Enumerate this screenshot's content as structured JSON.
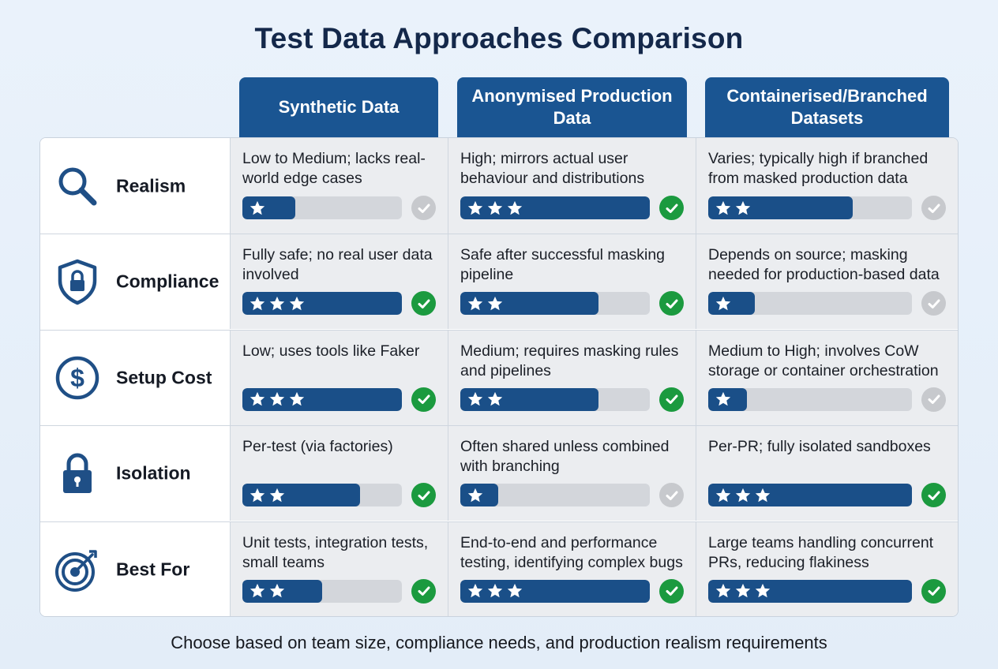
{
  "title": "Test Data Approaches Comparison",
  "columns": [
    {
      "label": "Synthetic Data"
    },
    {
      "label": "Anonymised Production Data"
    },
    {
      "label": "Containerised/Branched Datasets"
    }
  ],
  "rows": [
    {
      "label": "Realism",
      "icon": "magnifier-icon",
      "cells": [
        {
          "text": "Low to Medium; lacks real-world edge cases",
          "rating": 1,
          "level": 0.33,
          "check": false
        },
        {
          "text": "High; mirrors actual user behaviour and distributions",
          "rating": 3,
          "level": 1.0,
          "check": true
        },
        {
          "text": "Varies; typically high if branched from masked production data",
          "rating": 2,
          "level": 0.71,
          "check": false
        }
      ]
    },
    {
      "label": "Compliance",
      "icon": "shield-lock-icon",
      "cells": [
        {
          "text": "Fully safe; no real user data involved",
          "rating": 3,
          "level": 1.0,
          "check": true
        },
        {
          "text": "Safe after successful masking pipeline",
          "rating": 2,
          "level": 0.73,
          "check": true
        },
        {
          "text": "Depends on source; masking needed for production-based data",
          "rating": 1,
          "level": 0.23,
          "check": false
        }
      ]
    },
    {
      "label": "Setup Cost",
      "icon": "dollar-icon",
      "cells": [
        {
          "text": "Low; uses tools like Faker",
          "rating": 3,
          "level": 1.0,
          "check": true
        },
        {
          "text": "Medium; requires masking rules and pipelines",
          "rating": 2,
          "level": 0.73,
          "check": true
        },
        {
          "text": "Medium to High; involves CoW storage or container orchestration",
          "rating": 1,
          "level": 0.19,
          "check": false
        }
      ]
    },
    {
      "label": "Isolation",
      "icon": "padlock-icon",
      "cells": [
        {
          "text": "Per-test (via factories)",
          "rating": 2,
          "level": 0.74,
          "check": true
        },
        {
          "text": "Often shared unless combined with branching",
          "rating": 1,
          "level": 0.2,
          "check": false
        },
        {
          "text": "Per-PR; fully isolated sandboxes",
          "rating": 3,
          "level": 1.0,
          "check": true
        }
      ]
    },
    {
      "label": "Best For",
      "icon": "target-icon",
      "cells": [
        {
          "text": "Unit tests, integration tests, small teams",
          "rating": 2,
          "level": 0.5,
          "check": true
        },
        {
          "text": "End-to-end and performance testing, identifying complex bugs",
          "rating": 3,
          "level": 1.0,
          "check": true
        },
        {
          "text": "Large teams handling concurrent PRs, reducing flakiness",
          "rating": 3,
          "level": 1.0,
          "check": true
        }
      ]
    }
  ],
  "footer": "Choose based on team size, compliance needs, and production realism requirements",
  "colors": {
    "header": "#1a5592",
    "bar_fill": "#1a4f88",
    "bar_track": "#d3d6db",
    "check_on": "#1b9a3f",
    "check_off": "#c7c9cd",
    "icon": "#1f4f86"
  }
}
